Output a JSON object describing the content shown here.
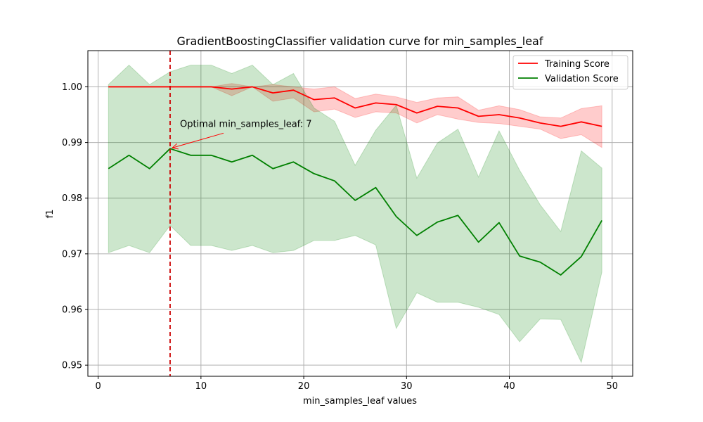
{
  "chart_data": {
    "type": "line",
    "title": "GradientBoostingClassifier validation curve for min_samples_leaf",
    "xlabel": "min_samples_leaf values",
    "ylabel": "f1",
    "xlim": [
      -1,
      52
    ],
    "ylim": [
      0.948,
      1.0065
    ],
    "xticks": [
      0,
      10,
      20,
      30,
      40,
      50
    ],
    "yticks": [
      0.95,
      0.96,
      0.97,
      0.98,
      0.99,
      1.0
    ],
    "ytick_labels": [
      "0.95",
      "0.96",
      "0.97",
      "0.98",
      "0.99",
      "1.00"
    ],
    "grid": true,
    "legend_position": "top-right",
    "x": [
      1,
      3,
      5,
      7,
      9,
      11,
      13,
      15,
      17,
      19,
      21,
      23,
      25,
      27,
      29,
      31,
      33,
      35,
      37,
      39,
      41,
      43,
      45,
      47,
      49
    ],
    "series": [
      {
        "name": "Training Score",
        "color": "#ff0000",
        "band_color": "#ff0000",
        "mean": [
          1.0,
          1.0,
          1.0,
          1.0,
          1.0,
          1.0,
          0.9996,
          1.0,
          0.9989,
          0.9994,
          0.9977,
          0.998,
          0.9962,
          0.9971,
          0.9968,
          0.9953,
          0.9965,
          0.9962,
          0.9947,
          0.995,
          0.9944,
          0.9935,
          0.9929,
          0.9937,
          0.9929
        ],
        "upper": [
          1.0,
          1.0,
          1.0,
          1.0,
          1.0,
          1.0,
          1.0006,
          1.0,
          1.0004,
          1.0,
          0.9996,
          1.0,
          0.9979,
          0.9987,
          0.9982,
          0.9972,
          0.998,
          0.9982,
          0.9958,
          0.9966,
          0.9959,
          0.9946,
          0.9944,
          0.9961,
          0.9966
        ],
        "lower": [
          1.0,
          1.0,
          1.0,
          1.0,
          1.0,
          1.0,
          0.9984,
          1.0,
          0.9974,
          0.998,
          0.9955,
          0.996,
          0.9945,
          0.9955,
          0.9953,
          0.9935,
          0.995,
          0.9942,
          0.9936,
          0.9934,
          0.9929,
          0.9924,
          0.9907,
          0.9914,
          0.9891
        ]
      },
      {
        "name": "Validation Score",
        "color": "#008000",
        "band_color": "#008000",
        "mean": [
          0.9853,
          0.9877,
          0.9853,
          0.9889,
          0.9877,
          0.9877,
          0.9865,
          0.9877,
          0.9853,
          0.9865,
          0.9844,
          0.9831,
          0.9796,
          0.9819,
          0.9767,
          0.9733,
          0.9757,
          0.9769,
          0.9721,
          0.9756,
          0.9696,
          0.9685,
          0.9662,
          0.9695,
          0.976
        ],
        "upper": [
          1.0004,
          1.0039,
          1.0004,
          1.0027,
          1.0039,
          1.0039,
          1.0024,
          1.0039,
          1.0004,
          1.0024,
          0.9962,
          0.9938,
          0.9859,
          0.9922,
          0.9967,
          0.9836,
          0.9899,
          0.9924,
          0.9838,
          0.9921,
          0.985,
          0.9788,
          0.974,
          0.9885,
          0.9854
        ],
        "lower": [
          0.9702,
          0.9715,
          0.9702,
          0.9751,
          0.9715,
          0.9715,
          0.9706,
          0.9715,
          0.9702,
          0.9706,
          0.9724,
          0.9724,
          0.9733,
          0.9716,
          0.9566,
          0.963,
          0.9613,
          0.9613,
          0.9604,
          0.9591,
          0.9542,
          0.9583,
          0.9582,
          0.9505,
          0.9667
        ]
      }
    ],
    "optimal": {
      "x": 7,
      "y": 0.9889,
      "label": "Optimal min_samples_leaf: 7",
      "line_color": "#cc0000",
      "arrow_color": "#ff0000"
    }
  }
}
